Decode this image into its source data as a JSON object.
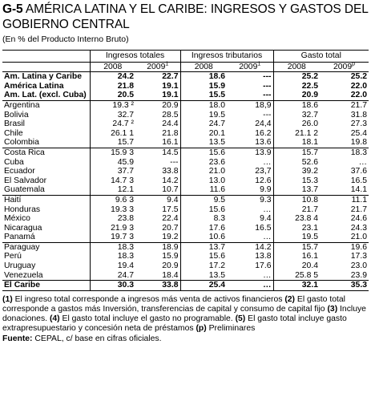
{
  "title_code": "G-5",
  "title_rest": " AMÉRICA LATINA Y EL CARIBE: INGRESOS Y GASTOS DEL GOBIERNO CENTRAL",
  "subtitle": "(En % del Producto Interno Bruto)",
  "groups": [
    "Ingresos totales",
    "Ingresos tributarios",
    "Gasto total"
  ],
  "years": [
    {
      "y": "2008",
      "sup": ""
    },
    {
      "y": "2009",
      "sup": "1"
    },
    {
      "y": "2008",
      "sup": ""
    },
    {
      "y": "2009",
      "sup": "1"
    },
    {
      "y": "2008",
      "sup": ""
    },
    {
      "y": "2009",
      "sup": "p"
    }
  ],
  "rows": [
    {
      "name": "Am. Latina y Caribe",
      "v": [
        "24.2",
        "22.7",
        "18.6",
        "---",
        "25.2",
        "25.2"
      ]
    },
    {
      "name": "América Latina",
      "v": [
        "21.8",
        "19.1",
        "15.9",
        "---",
        "22.5",
        "22.0"
      ]
    },
    {
      "name": "Am. Lat. (excl. Cuba)",
      "v": [
        "20.5",
        "19.1",
        "15.5",
        "---",
        "20.9",
        "22.0"
      ]
    },
    {
      "name": "Argentina",
      "v": [
        "19.3 ²",
        "20.9",
        "18.0",
        "18,9",
        "18.6",
        "21.7"
      ]
    },
    {
      "name": "Bolivia",
      "v": [
        "32.7",
        "28.5",
        "19.5",
        "---",
        "32.7",
        "31.8"
      ]
    },
    {
      "name": "Brasil",
      "v": [
        "24.7 ²",
        "24.4",
        "24.7",
        "24,4",
        "26.0",
        "27.3"
      ]
    },
    {
      "name": "Chile",
      "v": [
        "26.1 1",
        "21.8",
        "20.1",
        "16.2",
        "21.1 2",
        "25.4"
      ]
    },
    {
      "name": "Colombia",
      "v": [
        "15.7",
        "16.1",
        "13.5",
        "13.6",
        "18.1",
        "19.8"
      ]
    },
    {
      "name": "Costa Rica",
      "v": [
        "15.9 3",
        "14.5",
        "15.6",
        "13.9",
        "15.7",
        "18.3"
      ]
    },
    {
      "name": "Cuba",
      "v": [
        "45.9",
        "---",
        "23.6",
        "…",
        "52.6",
        "…"
      ]
    },
    {
      "name": "Ecuador",
      "v": [
        "37.7",
        "33.8",
        "21.0",
        "23,7",
        "39.2",
        "37.6"
      ]
    },
    {
      "name": "El Salvador",
      "v": [
        "14.7 3",
        "14.2",
        "13.0",
        "12.6",
        "15.3",
        "16.5"
      ]
    },
    {
      "name": "Guatemala",
      "v": [
        "12.1",
        "10.7",
        "11.6",
        "9.9",
        "13.7",
        "14.1"
      ]
    },
    {
      "name": "Haití",
      "v": [
        "9.6 3",
        "9.4",
        "9.5",
        "9.3",
        "10.8",
        "11.1"
      ]
    },
    {
      "name": "Honduras",
      "v": [
        "19.3 3",
        "17.5",
        "15.6",
        "…",
        "21.7",
        "21.7"
      ]
    },
    {
      "name": "México",
      "v": [
        "23.8",
        "22.4",
        "8.3",
        "9.4",
        "23.8 4",
        "24.6"
      ]
    },
    {
      "name": "Nicaragua",
      "v": [
        "21.9 3",
        "20.7",
        "17.6",
        "16.5",
        "23.1",
        "24.3"
      ]
    },
    {
      "name": "Panamá",
      "v": [
        "19.7 3",
        "19.2",
        "10.6",
        "…",
        "19.5",
        "21.0"
      ]
    },
    {
      "name": "Paraguay",
      "v": [
        "18.3",
        "18.9",
        "13.7",
        "14.2",
        "15.7",
        "19.6"
      ]
    },
    {
      "name": "Perú",
      "v": [
        "18.3",
        "15.9",
        "15.6",
        "13.8",
        "16.1",
        "17.3"
      ]
    },
    {
      "name": "Uruguay",
      "v": [
        "19.4",
        "20.9",
        "17.2",
        "17.6",
        "20.4",
        "23.0"
      ]
    },
    {
      "name": "Venezuela",
      "v": [
        "24.7",
        "18.4",
        "13.5",
        "…",
        "25.8 5",
        "23.9"
      ]
    },
    {
      "name": "El Caribe",
      "v": [
        "30.3",
        "33.8",
        "25.4",
        "…",
        "32.1",
        "35.3"
      ]
    }
  ],
  "notes": [
    {
      "num": "(1)",
      "text": " El ingreso total corresponde a ingresos más venta de activos financieros "
    },
    {
      "num": "(2)",
      "text": " El gasto total corresponde a gastos más Inversión, transferencias de capital y consumo de capital fijo "
    },
    {
      "num": "(3)",
      "text": " Incluye donaciones. "
    },
    {
      "num": "(4)",
      "text": " El gasto total incluye el gasto no programable. "
    },
    {
      "num": "(5)",
      "text": " El gasto total incluye gasto extrapresupuestario y concesión neta de préstamos "
    },
    {
      "num": "(p)",
      "text": " Preliminares"
    }
  ],
  "source_label": "Fuente:",
  "source_text": " CEPAL, c/ base en cifras oficiales."
}
